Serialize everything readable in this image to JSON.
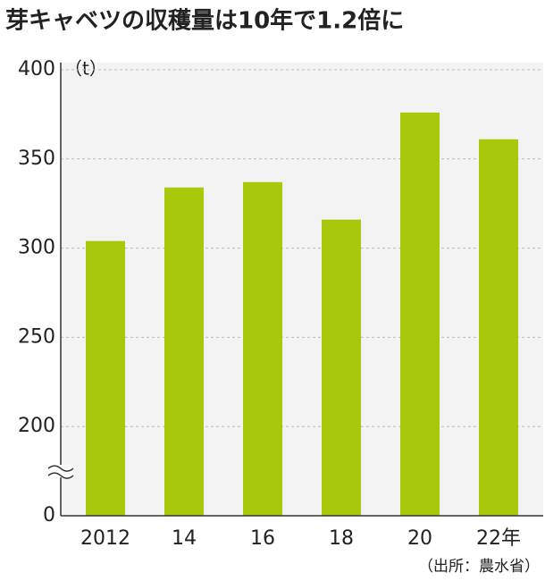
{
  "chart_data": {
    "type": "bar",
    "title": "芽キャベツの収穫量は10年で1.2倍に",
    "unit_label": "（t）",
    "source": "（出所：農水省）",
    "categories": [
      "2012",
      "14",
      "16",
      "18",
      "20",
      "22年"
    ],
    "values": [
      304,
      334,
      337,
      316,
      376,
      361
    ],
    "color": "#a8c90a",
    "ylim": [
      0,
      400
    ],
    "yticks": [
      0,
      200,
      250,
      300,
      350,
      400
    ],
    "axis_break": true,
    "grid": true
  }
}
